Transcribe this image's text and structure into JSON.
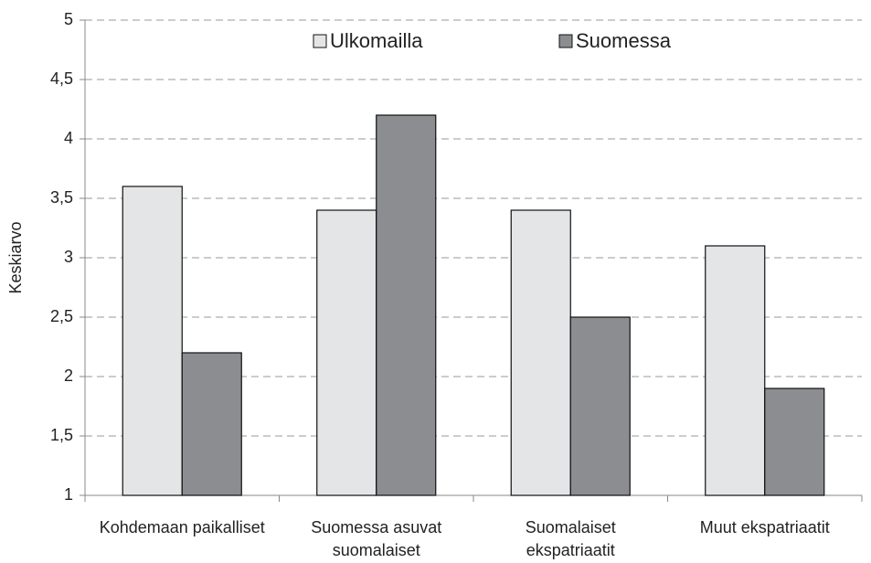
{
  "chart_data": {
    "type": "bar",
    "y_label": "Keskiarvo",
    "categories": [
      "Kohdemaan paikalliset",
      "Suomessa asuvat suomalaiset",
      "Suomalaiset ekspatriaatit",
      "Muut ekspatriaatit"
    ],
    "series": [
      {
        "name": "Ulkomailla",
        "color": "#e4e5e7",
        "values": [
          3.6,
          3.4,
          3.4,
          3.1
        ]
      },
      {
        "name": "Suomessa",
        "color": "#8c8d90",
        "values": [
          2.2,
          4.2,
          2.5,
          1.9
        ]
      }
    ],
    "ylim": [
      1,
      5
    ],
    "yticks": [
      1,
      {
        "value": 1.5,
        "label": "1,5"
      },
      2,
      {
        "value": 2.5,
        "label": "2,5"
      },
      3,
      {
        "value": 3.5,
        "label": "3,5"
      },
      4,
      {
        "value": 4.5,
        "label": "4,5"
      },
      5
    ],
    "grid": true
  }
}
